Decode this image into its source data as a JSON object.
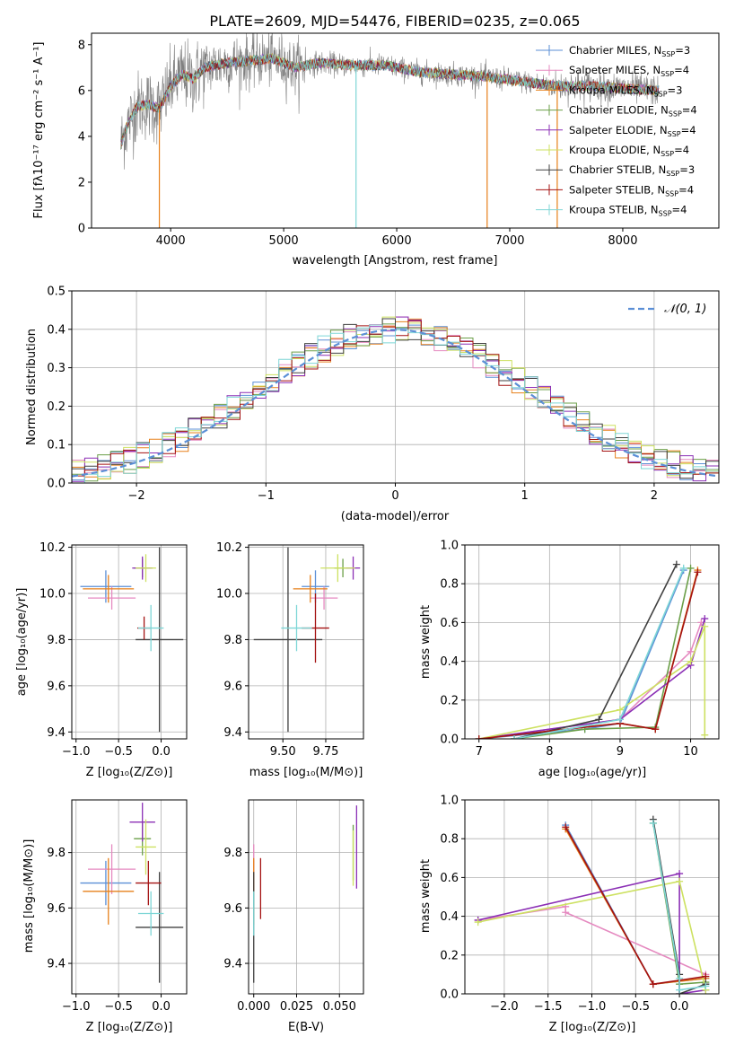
{
  "colors": {
    "chabrier_miles": "#5b8fd6",
    "salpeter_miles": "#e58ac0",
    "kroupa_miles": "#e7801b",
    "chabrier_elodie": "#6b9f48",
    "salpeter_elodie": "#8b2fb5",
    "kroupa_elodie": "#cde161",
    "chabrier_stelib": "#404040",
    "salpeter_stelib": "#a41212",
    "kroupa_stelib": "#7ed6d6",
    "observed": "#808080",
    "normal": "#5b8fd6"
  },
  "chart_data": [
    {
      "id": "spectrum",
      "type": "line",
      "title": "PLATE=2609, MJD=54476, FIBERID=0235, z=0.065",
      "xlabel": "wavelength [Angstrom, rest frame]",
      "ylabel": "Flux [fλ10⁻¹⁷ erg cm⁻² s⁻¹ A⁻¹]",
      "xlim": [
        3300,
        8850
      ],
      "ylim": [
        0,
        8.5
      ],
      "xticks": [
        "4000",
        "5000",
        "6000",
        "7000",
        "8000"
      ],
      "yticks": [
        "0",
        "2",
        "4",
        "6",
        "8"
      ],
      "grid": false,
      "legend_position": "top-right",
      "legend": [
        {
          "name": "Chabrier MILES, N",
          "sub": "SSP",
          "suffix": "=3",
          "key": "chabrier_miles"
        },
        {
          "name": "Salpeter MILES, N",
          "sub": "SSP",
          "suffix": "=4",
          "key": "salpeter_miles"
        },
        {
          "name": "Kroupa MILES, N",
          "sub": "SSP",
          "suffix": "=3",
          "key": "kroupa_miles"
        },
        {
          "name": "Chabrier ELODIE, N",
          "sub": "SSP",
          "suffix": "=4",
          "key": "chabrier_elodie"
        },
        {
          "name": "Salpeter ELODIE, N",
          "sub": "SSP",
          "suffix": "=4",
          "key": "salpeter_elodie"
        },
        {
          "name": "Kroupa ELODIE, N",
          "sub": "SSP",
          "suffix": "=4",
          "key": "kroupa_elodie"
        },
        {
          "name": "Chabrier STELIB, N",
          "sub": "SSP",
          "suffix": "=3",
          "key": "chabrier_stelib"
        },
        {
          "name": "Salpeter STELIB, N",
          "sub": "SSP",
          "suffix": "=4",
          "key": "salpeter_stelib"
        },
        {
          "name": "Kroupa STELIB, N",
          "sub": "SSP",
          "suffix": "=4",
          "key": "kroupa_stelib"
        }
      ],
      "model_continuum": {
        "x": [
          3550,
          3600,
          3700,
          3800,
          3900,
          4000,
          4100,
          4200,
          4300,
          4500,
          4700,
          4900,
          5100,
          5300,
          5600,
          5900,
          6200,
          6500,
          6800,
          7100,
          7400,
          7700,
          8000,
          8300
        ],
        "y": [
          3.5,
          4.3,
          5.3,
          5.4,
          5.2,
          6.2,
          6.7,
          6.5,
          7.0,
          7.2,
          7.3,
          7.4,
          7.0,
          7.2,
          7.1,
          7.1,
          6.8,
          6.7,
          6.6,
          6.4,
          6.2,
          6.2,
          6.1,
          6.0
        ]
      },
      "masked_drops_x": [
        3900,
        5640,
        6800,
        7420
      ]
    },
    {
      "id": "residuals",
      "type": "histogram",
      "xlabel": "(data-model)/error",
      "ylabel": "Normed distribution",
      "xlim": [
        -2.5,
        2.5
      ],
      "ylim": [
        0,
        0.5
      ],
      "xticks": [
        "−2",
        "−1",
        "0",
        "1",
        "2"
      ],
      "yticks": [
        "0.0",
        "0.1",
        "0.2",
        "0.3",
        "0.4",
        "0.5"
      ],
      "grid": true,
      "legend_position": "top-right",
      "legend": [
        {
          "name": "𝒩(0, 1)",
          "key": "normal"
        }
      ],
      "bin_width": 0.1
    },
    {
      "id": "z-age",
      "type": "errorbar",
      "xlabel": "Z [log₁₀(Z/Z⊙)]",
      "ylabel": "age  [log₁₀(age/yr)]",
      "xlim": [
        -1.05,
        0.3
      ],
      "ylim": [
        9.37,
        10.21
      ],
      "xticks": [
        "−1.0",
        "−0.5",
        "0.0"
      ],
      "yticks": [
        "9.4",
        "9.6",
        "9.8",
        "10.0",
        "10.2"
      ],
      "grid": true,
      "points": [
        {
          "key": "chabrier_miles",
          "x": -0.65,
          "xerr": 0.3,
          "y": 10.03,
          "yerr": 0.07
        },
        {
          "key": "salpeter_miles",
          "x": -0.58,
          "xerr": 0.28,
          "y": 9.98,
          "yerr": 0.05
        },
        {
          "key": "kroupa_miles",
          "x": -0.62,
          "xerr": 0.3,
          "y": 10.02,
          "yerr": 0.06
        },
        {
          "key": "chabrier_elodie",
          "x": -0.22,
          "xerr": 0.1,
          "y": 10.11,
          "yerr": 0.04
        },
        {
          "key": "salpeter_elodie",
          "x": -0.22,
          "xerr": 0.12,
          "y": 10.11,
          "yerr": 0.05
        },
        {
          "key": "kroupa_elodie",
          "x": -0.18,
          "xerr": 0.12,
          "y": 10.11,
          "yerr": 0.06
        },
        {
          "key": "chabrier_stelib",
          "x": -0.02,
          "xerr": 0.28,
          "y": 9.8,
          "yerr": 0.4
        },
        {
          "key": "salpeter_stelib",
          "x": -0.2,
          "xerr": 0.08,
          "y": 9.85,
          "yerr": 0.05
        },
        {
          "key": "kroupa_stelib",
          "x": -0.12,
          "xerr": 0.15,
          "y": 9.85,
          "yerr": 0.1
        }
      ]
    },
    {
      "id": "mass-age",
      "type": "errorbar",
      "xlabel": "mass [log₁₀(M/M⊙)]",
      "ylabel": "",
      "xlim": [
        9.3,
        9.97
      ],
      "ylim": [
        9.37,
        10.21
      ],
      "xticks": [
        "9.50",
        "9.75"
      ],
      "yticks": [
        "9.4",
        "9.6",
        "9.8",
        "10.0",
        "10.2"
      ],
      "grid": true,
      "points": [
        {
          "key": "chabrier_miles",
          "x": 9.69,
          "xerr": 0.08,
          "y": 10.03,
          "yerr": 0.07
        },
        {
          "key": "salpeter_miles",
          "x": 9.74,
          "xerr": 0.08,
          "y": 9.98,
          "yerr": 0.05
        },
        {
          "key": "kroupa_miles",
          "x": 9.66,
          "xerr": 0.1,
          "y": 10.02,
          "yerr": 0.06
        },
        {
          "key": "chabrier_elodie",
          "x": 9.85,
          "xerr": 0.05,
          "y": 10.11,
          "yerr": 0.04
        },
        {
          "key": "salpeter_elodie",
          "x": 9.91,
          "xerr": 0.04,
          "y": 10.11,
          "yerr": 0.05
        },
        {
          "key": "kroupa_elodie",
          "x": 9.82,
          "xerr": 0.1,
          "y": 10.11,
          "yerr": 0.06
        },
        {
          "key": "chabrier_stelib",
          "x": 9.53,
          "xerr": 0.2,
          "y": 9.8,
          "yerr": 0.4
        },
        {
          "key": "salpeter_stelib",
          "x": 9.69,
          "xerr": 0.08,
          "y": 9.85,
          "yerr": 0.15
        },
        {
          "key": "kroupa_stelib",
          "x": 9.58,
          "xerr": 0.09,
          "y": 9.85,
          "yerr": 0.1
        }
      ]
    },
    {
      "id": "age-weight",
      "type": "line",
      "xlabel": "age  [log₁₀(age/yr)]",
      "ylabel": "mass weight",
      "xlim": [
        6.8,
        10.4
      ],
      "ylim": [
        0,
        1
      ],
      "xticks": [
        "7",
        "8",
        "9",
        "10"
      ],
      "yticks": [
        "0.0",
        "0.2",
        "0.4",
        "0.6",
        "0.8",
        "1.0"
      ],
      "grid": true,
      "series": [
        {
          "key": "chabrier_miles",
          "x": [
            7.0,
            8.5,
            9.0,
            9.9
          ],
          "y": [
            0.0,
            0.05,
            0.08,
            0.87
          ]
        },
        {
          "key": "salpeter_miles",
          "x": [
            7.0,
            9.0,
            10.0,
            10.15
          ],
          "y": [
            0.0,
            0.1,
            0.45,
            0.6
          ]
        },
        {
          "key": "kroupa_miles",
          "x": [
            7.0,
            9.0,
            9.5,
            10.1
          ],
          "y": [
            0.0,
            0.08,
            0.05,
            0.87
          ]
        },
        {
          "key": "chabrier_elodie",
          "x": [
            7.5,
            8.5,
            9.5,
            10.0
          ],
          "y": [
            0.0,
            0.05,
            0.06,
            0.88
          ]
        },
        {
          "key": "salpeter_elodie",
          "x": [
            7.0,
            9.0,
            10.0,
            10.2
          ],
          "y": [
            0.0,
            0.1,
            0.38,
            0.62
          ]
        },
        {
          "key": "kroupa_elodie",
          "x": [
            7.0,
            9.0,
            10.0,
            10.2,
            10.2
          ],
          "y": [
            0.0,
            0.15,
            0.4,
            0.58,
            0.02
          ]
        },
        {
          "key": "chabrier_stelib",
          "x": [
            7.5,
            8.7,
            9.8
          ],
          "y": [
            0.0,
            0.1,
            0.9
          ]
        },
        {
          "key": "salpeter_stelib",
          "x": [
            7.0,
            9.0,
            9.5,
            10.1
          ],
          "y": [
            0.0,
            0.08,
            0.05,
            0.86
          ]
        },
        {
          "key": "kroupa_stelib",
          "x": [
            7.5,
            9.0,
            9.9
          ],
          "y": [
            0.0,
            0.1,
            0.88
          ]
        }
      ]
    },
    {
      "id": "z-mass",
      "type": "errorbar",
      "xlabel": "Z [log₁₀(Z/Z⊙)]",
      "ylabel": "mass [log₁₀(M/M⊙)]",
      "xlim": [
        -1.05,
        0.3
      ],
      "ylim": [
        9.29,
        9.99
      ],
      "xticks": [
        "−1.0",
        "−0.5",
        "0.0"
      ],
      "yticks": [
        "9.4",
        "9.6",
        "9.8"
      ],
      "grid": true,
      "points": [
        {
          "key": "chabrier_miles",
          "x": -0.65,
          "xerr": 0.3,
          "y": 9.69,
          "yerr": 0.08
        },
        {
          "key": "salpeter_miles",
          "x": -0.58,
          "xerr": 0.28,
          "y": 9.74,
          "yerr": 0.09
        },
        {
          "key": "kroupa_miles",
          "x": -0.62,
          "xerr": 0.3,
          "y": 9.66,
          "yerr": 0.12
        },
        {
          "key": "chabrier_elodie",
          "x": -0.22,
          "xerr": 0.1,
          "y": 9.85,
          "yerr": 0.06
        },
        {
          "key": "salpeter_elodie",
          "x": -0.22,
          "xerr": 0.15,
          "y": 9.91,
          "yerr": 0.07
        },
        {
          "key": "kroupa_elodie",
          "x": -0.18,
          "xerr": 0.12,
          "y": 9.82,
          "yerr": 0.1
        },
        {
          "key": "chabrier_stelib",
          "x": -0.02,
          "xerr": 0.28,
          "y": 9.53,
          "yerr": 0.2
        },
        {
          "key": "salpeter_stelib",
          "x": -0.15,
          "xerr": 0.15,
          "y": 9.69,
          "yerr": 0.08
        },
        {
          "key": "kroupa_stelib",
          "x": -0.12,
          "xerr": 0.15,
          "y": 9.58,
          "yerr": 0.08
        }
      ]
    },
    {
      "id": "ebv-mass",
      "type": "errorbar",
      "xlabel": "E(B-V)",
      "ylabel": "",
      "xlim": [
        -0.003,
        0.064
      ],
      "ylim": [
        9.29,
        9.99
      ],
      "xticks": [
        "0.000",
        "0.025",
        "0.050"
      ],
      "yticks": [
        "9.4",
        "9.6",
        "9.8"
      ],
      "grid": true,
      "points": [
        {
          "key": "chabrier_miles",
          "x": 0.0,
          "xerr": 0,
          "y": 9.69,
          "yerr": 0.08
        },
        {
          "key": "salpeter_miles",
          "x": 0.0,
          "xerr": 0,
          "y": 9.74,
          "yerr": 0.09
        },
        {
          "key": "kroupa_miles",
          "x": 0.0,
          "xerr": 0,
          "y": 9.66,
          "yerr": 0.12
        },
        {
          "key": "chabrier_elodie",
          "x": 0.058,
          "xerr": 0,
          "y": 9.8,
          "yerr": 0.1
        },
        {
          "key": "salpeter_elodie",
          "x": 0.06,
          "xerr": 0,
          "y": 9.82,
          "yerr": 0.15
        },
        {
          "key": "kroupa_elodie",
          "x": 0.058,
          "xerr": 0,
          "y": 9.78,
          "yerr": 0.1
        },
        {
          "key": "chabrier_stelib",
          "x": 0.0,
          "xerr": 0,
          "y": 9.53,
          "yerr": 0.2
        },
        {
          "key": "salpeter_stelib",
          "x": 0.004,
          "xerr": 0,
          "y": 9.67,
          "yerr": 0.11
        },
        {
          "key": "kroupa_stelib",
          "x": 0.0,
          "xerr": 0,
          "y": 9.58,
          "yerr": 0.08
        }
      ]
    },
    {
      "id": "z-weight",
      "type": "line",
      "xlabel": "Z [log₁₀(Z/Z⊙)]",
      "ylabel": "mass weight",
      "xlim": [
        -2.45,
        0.45
      ],
      "ylim": [
        0,
        1
      ],
      "xticks": [
        "−2.0",
        "−1.5",
        "−1.0",
        "−0.5",
        "0.0"
      ],
      "yticks": [
        "0.0",
        "0.2",
        "0.4",
        "0.6",
        "0.8",
        "1.0"
      ],
      "grid": true,
      "series": [
        {
          "key": "chabrier_miles",
          "x": [
            -1.3,
            -0.3,
            0.3
          ],
          "y": [
            0.87,
            0.05,
            0.08
          ]
        },
        {
          "key": "salpeter_miles",
          "x": [
            -2.3,
            -1.3,
            -1.3,
            0.3
          ],
          "y": [
            0.38,
            0.45,
            0.42,
            0.1
          ]
        },
        {
          "key": "kroupa_miles",
          "x": [
            -1.3,
            -0.3,
            0.3
          ],
          "y": [
            0.85,
            0.05,
            0.08
          ]
        },
        {
          "key": "chabrier_elodie",
          "x": [
            -0.3,
            0.0,
            0.3
          ],
          "y": [
            0.88,
            0.05,
            0.06
          ]
        },
        {
          "key": "salpeter_elodie",
          "x": [
            -2.3,
            0.0,
            0.0,
            0.3
          ],
          "y": [
            0.38,
            0.62,
            0.0,
            0.02
          ]
        },
        {
          "key": "kroupa_elodie",
          "x": [
            -2.3,
            0.0,
            0.3
          ],
          "y": [
            0.37,
            0.58,
            0.02
          ]
        },
        {
          "key": "chabrier_stelib",
          "x": [
            -0.3,
            0.0,
            0.0,
            0.3
          ],
          "y": [
            0.9,
            0.1,
            0.0,
            0.05
          ]
        },
        {
          "key": "salpeter_stelib",
          "x": [
            -1.3,
            -0.3,
            0.3
          ],
          "y": [
            0.86,
            0.05,
            0.09
          ]
        },
        {
          "key": "kroupa_stelib",
          "x": [
            -0.3,
            0.0,
            0.0,
            0.3
          ],
          "y": [
            0.88,
            0.08,
            0.02,
            0.04
          ]
        }
      ]
    }
  ]
}
